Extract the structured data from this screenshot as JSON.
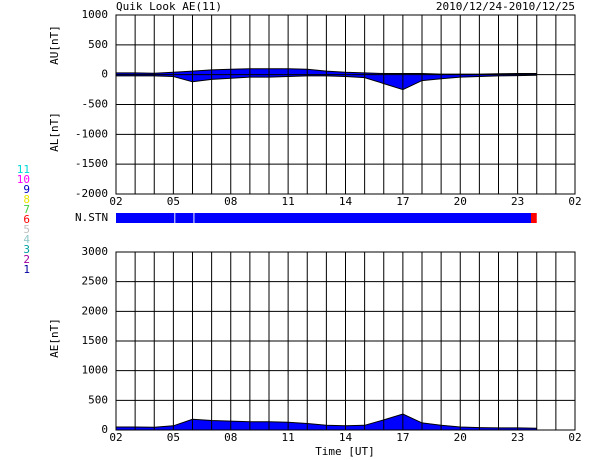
{
  "header": {
    "title": "Quik Look AE(11)",
    "date_range": "2010/12/24-2010/12/25"
  },
  "stations": [
    {
      "name": "11",
      "color": "#00d8d8"
    },
    {
      "name": "10",
      "color": "#ff00ff"
    },
    {
      "name": "9",
      "color": "#0000c8"
    },
    {
      "name": "8",
      "color": "#e8e800"
    },
    {
      "name": "7",
      "color": "#40d040"
    },
    {
      "name": "6",
      "color": "#ff0000"
    },
    {
      "name": "5",
      "color": "#c0c0c0"
    },
    {
      "name": "4",
      "color": "#90c8c8"
    },
    {
      "name": "3",
      "color": "#00a0a0"
    },
    {
      "name": "2",
      "color": "#a000a0"
    },
    {
      "name": "1",
      "color": "#0000a0"
    }
  ],
  "nstn": {
    "label": "N.STN",
    "segments": [
      {
        "from": 0,
        "to": 3.05,
        "color": "#0000ff"
      },
      {
        "from": 3.1,
        "to": 4.05,
        "color": "#0000ff"
      },
      {
        "from": 4.1,
        "to": 21.7,
        "color": "#0000ff"
      },
      {
        "from": 21.7,
        "to": 22,
        "color": "#ff0000"
      }
    ]
  },
  "chart_data": [
    {
      "type": "area",
      "ylabel_upper": "AU[nT]",
      "ylabel_lower": "AL[nT]",
      "x": [
        0,
        1,
        2,
        3,
        4,
        5,
        6,
        7,
        8,
        9,
        10,
        11,
        12,
        13,
        14,
        15,
        16,
        17,
        18,
        19,
        20,
        21,
        22
      ],
      "series": [
        {
          "name": "AU",
          "color": "#0000ff",
          "values": [
            30,
            30,
            25,
            40,
            60,
            80,
            90,
            100,
            100,
            100,
            90,
            60,
            40,
            30,
            20,
            20,
            20,
            10,
            10,
            10,
            15,
            20,
            20
          ]
        },
        {
          "name": "AL",
          "color": "#0000ff",
          "values": [
            -20,
            -20,
            -20,
            -30,
            -120,
            -80,
            -60,
            -40,
            -40,
            -30,
            -20,
            -20,
            -30,
            -50,
            -150,
            -250,
            -100,
            -70,
            -40,
            -30,
            -20,
            -15,
            -10
          ]
        }
      ],
      "xlim": [
        0,
        24
      ],
      "xticks": [
        {
          "value": 0,
          "label": "02"
        },
        {
          "value": 3,
          "label": "05"
        },
        {
          "value": 6,
          "label": "08"
        },
        {
          "value": 9,
          "label": "11"
        },
        {
          "value": 12,
          "label": "14"
        },
        {
          "value": 15,
          "label": "17"
        },
        {
          "value": 18,
          "label": "20"
        },
        {
          "value": 21,
          "label": "23"
        },
        {
          "value": 24,
          "label": "02"
        }
      ],
      "xminor": [
        1,
        2,
        4,
        5,
        7,
        8,
        10,
        11,
        13,
        14,
        16,
        17,
        19,
        20,
        22,
        23
      ],
      "ylim": [
        -2000,
        1000
      ],
      "yticks": [
        1000,
        500,
        0,
        -500,
        -1000,
        -1500,
        -2000
      ]
    },
    {
      "type": "area",
      "ylabel": "AE[nT]",
      "xlabel": "Time [UT]",
      "x": [
        0,
        1,
        2,
        3,
        4,
        5,
        6,
        7,
        8,
        9,
        10,
        11,
        12,
        13,
        14,
        15,
        16,
        17,
        18,
        19,
        20,
        21,
        22
      ],
      "series": [
        {
          "name": "AE",
          "color": "#0000ff",
          "values": [
            50,
            50,
            45,
            70,
            180,
            160,
            150,
            140,
            140,
            130,
            110,
            80,
            70,
            80,
            170,
            270,
            120,
            80,
            50,
            40,
            35,
            35,
            30
          ]
        }
      ],
      "xlim": [
        0,
        24
      ],
      "xticks": [
        {
          "value": 0,
          "label": "02"
        },
        {
          "value": 3,
          "label": "05"
        },
        {
          "value": 6,
          "label": "08"
        },
        {
          "value": 9,
          "label": "11"
        },
        {
          "value": 12,
          "label": "14"
        },
        {
          "value": 15,
          "label": "17"
        },
        {
          "value": 18,
          "label": "20"
        },
        {
          "value": 21,
          "label": "23"
        },
        {
          "value": 24,
          "label": "02"
        }
      ],
      "xminor": [
        1,
        2,
        4,
        5,
        7,
        8,
        10,
        11,
        13,
        14,
        16,
        17,
        19,
        20,
        22,
        23
      ],
      "ylim": [
        0,
        3000
      ],
      "yticks": [
        0,
        500,
        1000,
        1500,
        2000,
        2500,
        3000
      ]
    }
  ]
}
